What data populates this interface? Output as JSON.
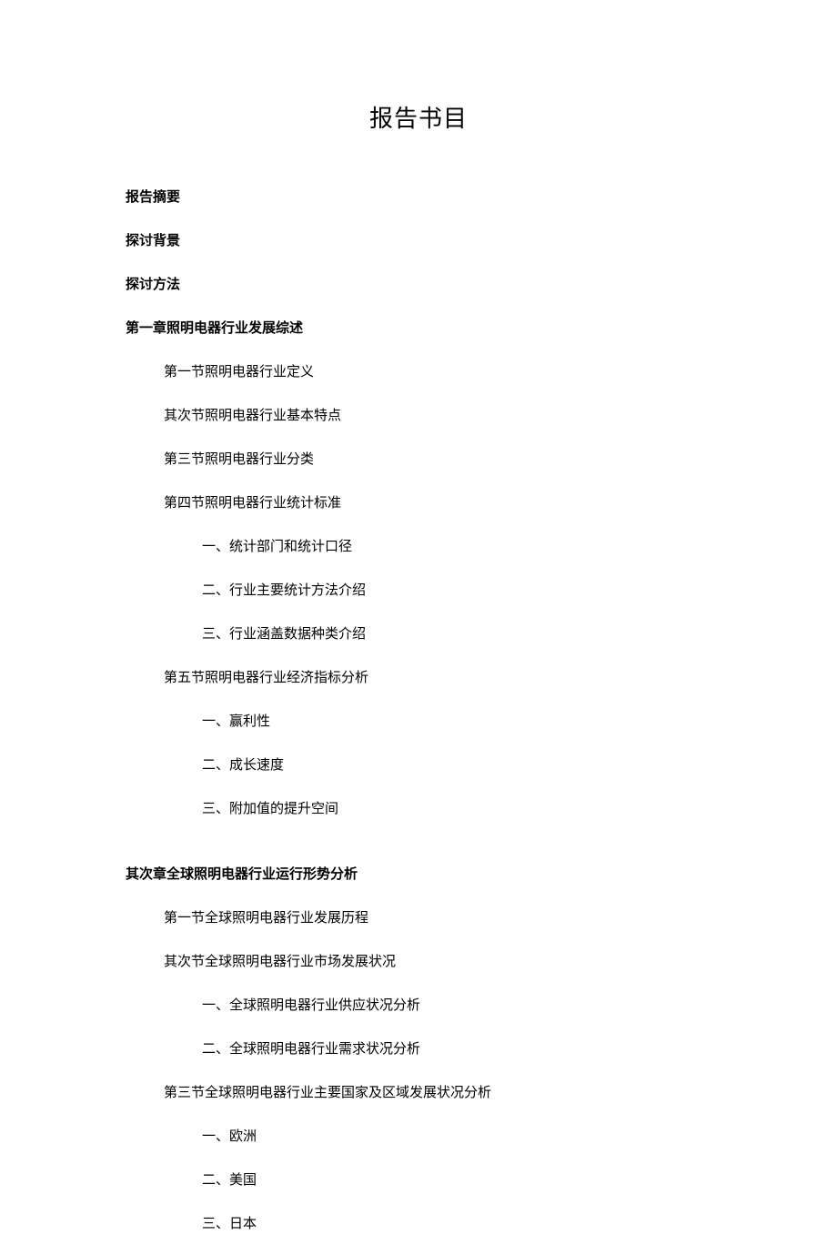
{
  "title": "报告书目",
  "headers": {
    "abstract": "报告摘要",
    "background": "探讨背景",
    "methods": "探讨方法"
  },
  "chapter1": {
    "title": "第一章照明电器行业发展综述",
    "section1": "第一节照明电器行业定义",
    "section2": "其次节照明电器行业基本特点",
    "section3": "第三节照明电器行业分类",
    "section4": "第四节照明电器行业统计标准",
    "section4_items": {
      "item1": "一、统计部门和统计口径",
      "item2": "二、行业主要统计方法介绍",
      "item3": "三、行业涵盖数据种类介绍"
    },
    "section5": "第五节照明电器行业经济指标分析",
    "section5_items": {
      "item1": "一、赢利性",
      "item2": "二、成长速度",
      "item3": "三、附加值的提升空间"
    }
  },
  "chapter2": {
    "title": "其次章全球照明电器行业运行形势分析",
    "section1": "第一节全球照明电器行业发展历程",
    "section2": "其次节全球照明电器行业市场发展状况",
    "section2_items": {
      "item1": "一、全球照明电器行业供应状况分析",
      "item2": "二、全球照明电器行业需求状况分析"
    },
    "section3": "第三节全球照明电器行业主要国家及区域发展状况分析",
    "section3_items": {
      "item1": "一、欧洲",
      "item2": "二、美国",
      "item3": "三、日本"
    }
  }
}
